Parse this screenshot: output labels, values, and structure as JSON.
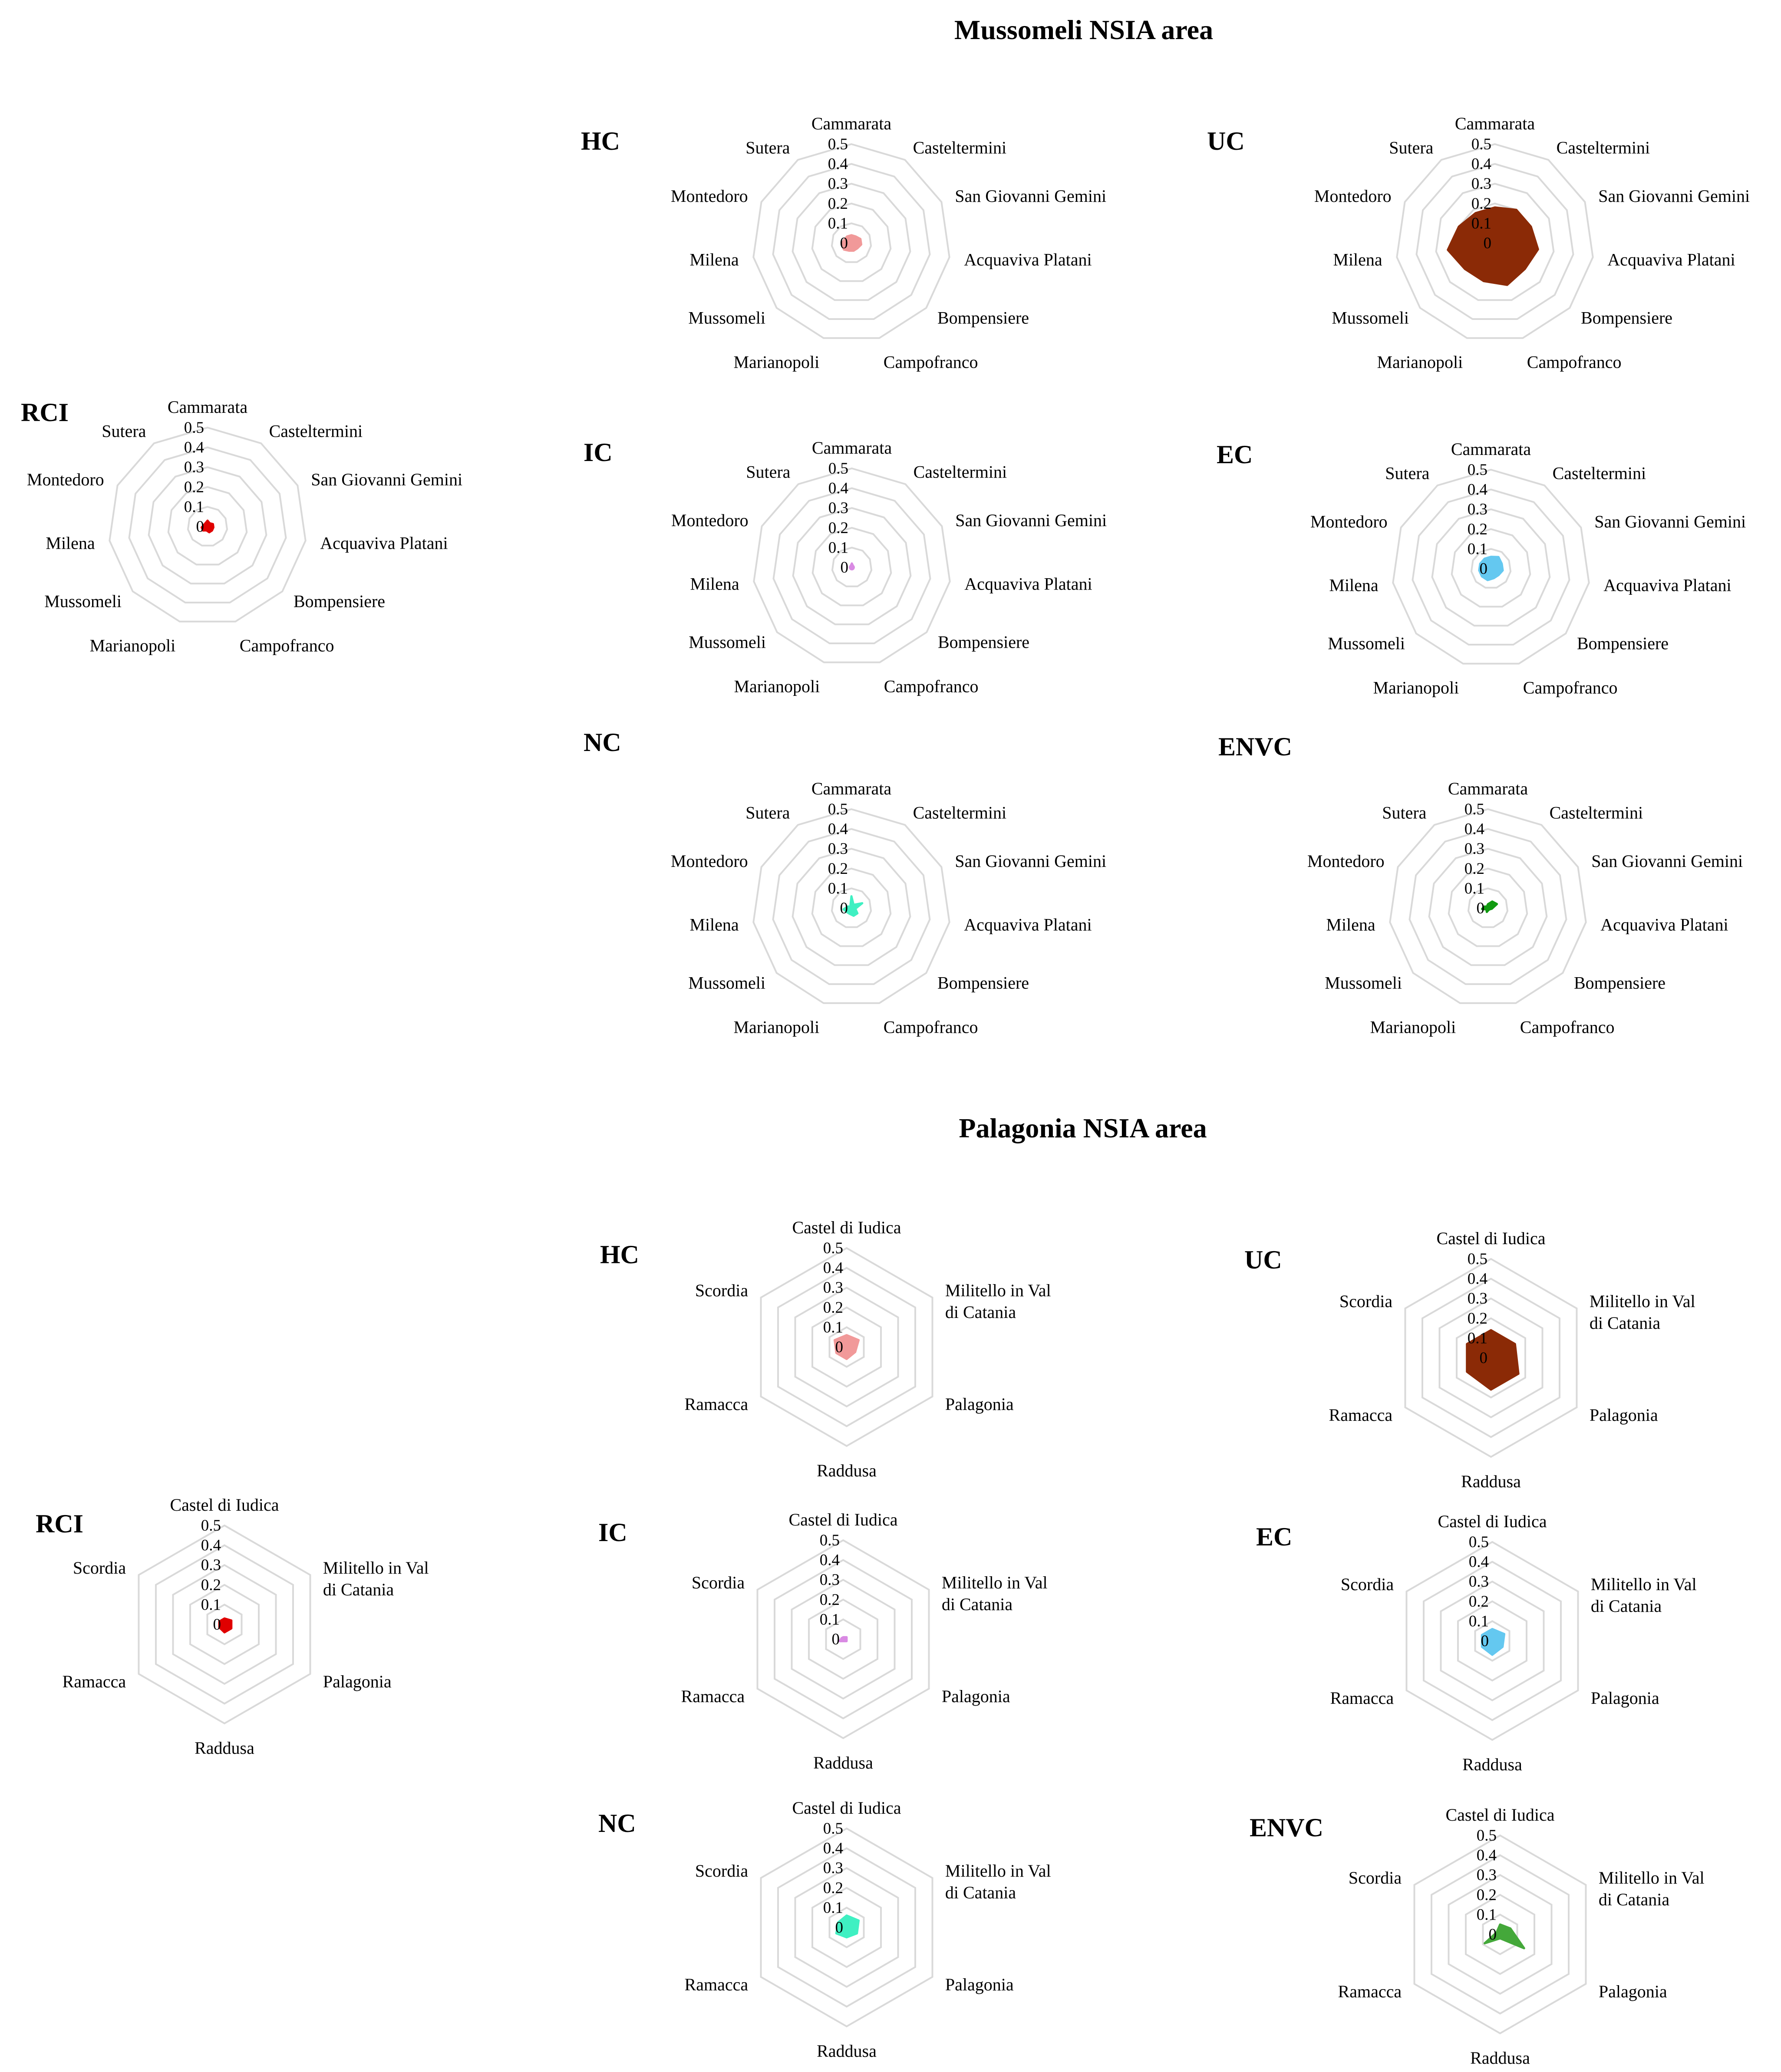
{
  "sections": [
    {
      "title": "Mussomeli NSIA area"
    },
    {
      "title": "Palagonia NSIA area"
    }
  ],
  "chart_data": [
    {
      "type": "radar",
      "section": "Mussomeli NSIA area",
      "label": "RCI",
      "color": "#e00000",
      "categories": [
        "Cammarata",
        "Casteltermini",
        "San Giovanni Gemini",
        "Acquaviva Platani",
        "Bompensiere",
        "Campofranco",
        "Marianopoli",
        "Mussomeli",
        "Milena",
        "Montedoro",
        "Sutera"
      ],
      "values": [
        0.03,
        0.02,
        0.03,
        0.03,
        0.03,
        0.03,
        0.02,
        0.03,
        0.03,
        0.02,
        0.02
      ],
      "rlim": [
        0,
        0.5
      ],
      "ticks": [
        "0",
        "0.1",
        "0.2",
        "0.3",
        "0.4",
        "0.5"
      ]
    },
    {
      "type": "radar",
      "section": "Mussomeli NSIA area",
      "label": "HC",
      "color": "#f19999",
      "categories": [
        "Cammarata",
        "Casteltermini",
        "San Giovanni Gemini",
        "Acquaviva Platani",
        "Bompensiere",
        "Campofranco",
        "Marianopoli",
        "Mussomeli",
        "Milena",
        "Montedoro",
        "Sutera"
      ],
      "values": [
        0.04,
        0.04,
        0.05,
        0.05,
        0.04,
        0.04,
        0.04,
        0.05,
        0.05,
        0.04,
        0.04
      ],
      "rlim": [
        0,
        0.5
      ],
      "ticks": [
        "0",
        "0.1",
        "0.2",
        "0.3",
        "0.4",
        "0.5"
      ]
    },
    {
      "type": "radar",
      "section": "Mussomeli NSIA area",
      "label": "UC",
      "color": "#8b2a06",
      "categories": [
        "Cammarata",
        "Casteltermini",
        "San Giovanni Gemini",
        "Acquaviva Platani",
        "Bompensiere",
        "Campofranco",
        "Marianopoli",
        "Mussomeli",
        "Milena",
        "Montedoro",
        "Sutera"
      ],
      "values": [
        0.18,
        0.2,
        0.2,
        0.22,
        0.2,
        0.22,
        0.2,
        0.2,
        0.24,
        0.2,
        0.18
      ],
      "rlim": [
        0,
        0.5
      ],
      "ticks": [
        "0",
        "0.1",
        "0.2",
        "0.3",
        "0.4",
        "0.5"
      ]
    },
    {
      "type": "radar",
      "section": "Mussomeli NSIA area",
      "label": "IC",
      "color": "#d98ae3",
      "categories": [
        "Cammarata",
        "Casteltermini",
        "San Giovanni Gemini",
        "Acquaviva Platani",
        "Bompensiere",
        "Campofranco",
        "Marianopoli",
        "Mussomeli",
        "Milena",
        "Montedoro",
        "Sutera"
      ],
      "values": [
        0.02,
        0.01,
        0.01,
        0.01,
        0.01,
        0.01,
        0.01,
        0.01,
        0.01,
        0.01,
        0.01
      ],
      "rlim": [
        0,
        0.5
      ],
      "ticks": [
        "0",
        "0.1",
        "0.2",
        "0.3",
        "0.4",
        "0.5"
      ]
    },
    {
      "type": "radar",
      "section": "Mussomeli NSIA area",
      "label": "EC",
      "color": "#64c8f0",
      "categories": [
        "Cammarata",
        "Casteltermini",
        "San Giovanni Gemini",
        "Acquaviva Platani",
        "Bompensiere",
        "Campofranco",
        "Marianopoli",
        "Mussomeli",
        "Milena",
        "Montedoro",
        "Sutera"
      ],
      "values": [
        0.06,
        0.07,
        0.06,
        0.06,
        0.05,
        0.05,
        0.06,
        0.06,
        0.06,
        0.06,
        0.06
      ],
      "rlim": [
        0,
        0.5
      ],
      "ticks": [
        "0",
        "0.1",
        "0.2",
        "0.3",
        "0.4",
        "0.5"
      ]
    },
    {
      "type": "radar",
      "section": "Mussomeli NSIA area",
      "label": "NC",
      "color": "#3ff0c2",
      "categories": [
        "Cammarata",
        "Casteltermini",
        "San Giovanni Gemini",
        "Acquaviva Platani",
        "Bompensiere",
        "Campofranco",
        "Marianopoli",
        "Mussomeli",
        "Milena",
        "Montedoro",
        "Sutera"
      ],
      "values": [
        0.06,
        0.02,
        0.06,
        0.02,
        0.04,
        0.04,
        0.03,
        0.03,
        0.04,
        0.02,
        0.01
      ],
      "rlim": [
        0,
        0.5
      ],
      "ticks": [
        "0",
        "0.1",
        "0.2",
        "0.3",
        "0.4",
        "0.5"
      ]
    },
    {
      "type": "radar",
      "section": "Mussomeli NSIA area",
      "label": "ENVC",
      "color": "#109a10",
      "categories": [
        "Cammarata",
        "Casteltermini",
        "San Giovanni Gemini",
        "Acquaviva Platani",
        "Bompensiere",
        "Campofranco",
        "Marianopoli",
        "Mussomeli",
        "Milena",
        "Montedoro",
        "Sutera"
      ],
      "values": [
        0.02,
        0.04,
        0.05,
        0.02,
        0.01,
        0.01,
        0.02,
        0.01,
        0.03,
        0.02,
        0.01
      ],
      "rlim": [
        0,
        0.5
      ],
      "ticks": [
        "0",
        "0.1",
        "0.2",
        "0.3",
        "0.4",
        "0.5"
      ]
    },
    {
      "type": "radar",
      "section": "Palagonia NSIA area",
      "label": "RCI",
      "color": "#e00000",
      "categories": [
        "Castel di Iudica",
        "Militello in Val di Catania",
        "Palagonia",
        "Raddusa",
        "Ramacca",
        "Scordia"
      ],
      "values": [
        0.03,
        0.04,
        0.04,
        0.04,
        0.03,
        0.03
      ],
      "rlim": [
        0,
        0.5
      ],
      "ticks": [
        "0",
        "0.1",
        "0.2",
        "0.3",
        "0.4",
        "0.5"
      ]
    },
    {
      "type": "radar",
      "section": "Palagonia NSIA area",
      "label": "HC",
      "color": "#f19999",
      "categories": [
        "Castel di Iudica",
        "Militello in Val di Catania",
        "Palagonia",
        "Raddusa",
        "Ramacca",
        "Scordia"
      ],
      "values": [
        0.06,
        0.07,
        0.05,
        0.06,
        0.06,
        0.07
      ],
      "rlim": [
        0,
        0.5
      ],
      "ticks": [
        "0",
        "0.1",
        "0.2",
        "0.3",
        "0.4",
        "0.5"
      ]
    },
    {
      "type": "radar",
      "section": "Palagonia NSIA area",
      "label": "UC",
      "color": "#8b2a06",
      "categories": [
        "Castel di Iudica",
        "Militello in Val di Catania",
        "Palagonia",
        "Raddusa",
        "Ramacca",
        "Scordia"
      ],
      "values": [
        0.14,
        0.14,
        0.16,
        0.16,
        0.14,
        0.14
      ],
      "rlim": [
        0,
        0.5
      ],
      "ticks": [
        "0",
        "0.1",
        "0.2",
        "0.3",
        "0.4",
        "0.5"
      ]
    },
    {
      "type": "radar",
      "section": "Palagonia NSIA area",
      "label": "IC",
      "color": "#d98ae3",
      "categories": [
        "Castel di Iudica",
        "Militello in Val di Catania",
        "Palagonia",
        "Raddusa",
        "Ramacca",
        "Scordia"
      ],
      "values": [
        0.01,
        0.02,
        0.02,
        0.01,
        0.02,
        0.01
      ],
      "rlim": [
        0,
        0.5
      ],
      "ticks": [
        "0",
        "0.1",
        "0.2",
        "0.3",
        "0.4",
        "0.5"
      ]
    },
    {
      "type": "radar",
      "section": "Palagonia NSIA area",
      "label": "EC",
      "color": "#64c8f0",
      "categories": [
        "Castel di Iudica",
        "Militello in Val di Catania",
        "Palagonia",
        "Raddusa",
        "Ramacca",
        "Scordia"
      ],
      "values": [
        0.06,
        0.07,
        0.06,
        0.07,
        0.06,
        0.06
      ],
      "rlim": [
        0,
        0.5
      ],
      "ticks": [
        "0",
        "0.1",
        "0.2",
        "0.3",
        "0.4",
        "0.5"
      ]
    },
    {
      "type": "radar",
      "section": "Palagonia NSIA area",
      "label": "NC",
      "color": "#3ff0c2",
      "categories": [
        "Castel di Iudica",
        "Militello in Val di Catania",
        "Palagonia",
        "Raddusa",
        "Ramacca",
        "Scordia"
      ],
      "values": [
        0.06,
        0.07,
        0.06,
        0.05,
        0.06,
        0.05
      ],
      "rlim": [
        0,
        0.5
      ],
      "ticks": [
        "0",
        "0.1",
        "0.2",
        "0.3",
        "0.4",
        "0.5"
      ]
    },
    {
      "type": "radar",
      "section": "Palagonia NSIA area",
      "label": "ENVC",
      "color": "#44a83a",
      "categories": [
        "Castel di Iudica",
        "Militello in Val di Catania",
        "Palagonia",
        "Raddusa",
        "Ramacca",
        "Scordia"
      ],
      "values": [
        0.05,
        0.06,
        0.14,
        0.02,
        0.09,
        0.02
      ],
      "rlim": [
        0,
        0.5
      ],
      "ticks": [
        "0",
        "0.1",
        "0.2",
        "0.3",
        "0.4",
        "0.5"
      ]
    }
  ]
}
